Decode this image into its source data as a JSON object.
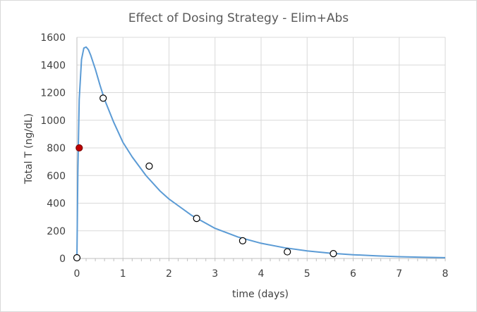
{
  "chart_data": {
    "type": "scatter",
    "title": "Effect of Dosing Strategy - Elim+Abs",
    "xlabel": "time (days)",
    "ylabel": "Total T (ng/dL)",
    "xlim": [
      0,
      8
    ],
    "ylim": [
      0,
      1600
    ],
    "x_ticks": [
      0,
      1,
      2,
      3,
      4,
      5,
      6,
      7,
      8
    ],
    "y_ticks": [
      0,
      200,
      400,
      600,
      800,
      1000,
      1200,
      1400,
      1600
    ],
    "grid": true,
    "legend": "none",
    "series": [
      {
        "type": "line",
        "color": "#5b9bd5",
        "x": [
          0,
          0.02,
          0.05,
          0.1,
          0.15,
          0.2,
          0.25,
          0.3,
          0.4,
          0.5,
          0.6,
          0.8,
          1.0,
          1.2,
          1.5,
          1.8,
          2.0,
          2.5,
          3.0,
          3.5,
          4.0,
          4.5,
          5.0,
          5.5,
          6.0,
          6.5,
          7.0,
          7.5,
          8.0
        ],
        "y": [
          0,
          620,
          1150,
          1440,
          1522,
          1530,
          1510,
          1470,
          1370,
          1255,
          1150,
          985,
          840,
          735,
          600,
          490,
          430,
          310,
          218,
          155,
          110,
          78,
          55,
          38,
          27,
          19,
          13,
          9,
          6
        ]
      },
      {
        "type": "scatter",
        "marker": "circle-open",
        "color": "#000000",
        "x": [
          0,
          0.57,
          1.57,
          2.6,
          3.6,
          4.57,
          5.57
        ],
        "y": [
          5,
          1160,
          668,
          290,
          128,
          48,
          35
        ]
      },
      {
        "type": "scatter",
        "marker": "circle-filled",
        "color": "#c00000",
        "x": [
          0.05
        ],
        "y": [
          800
        ]
      }
    ]
  }
}
